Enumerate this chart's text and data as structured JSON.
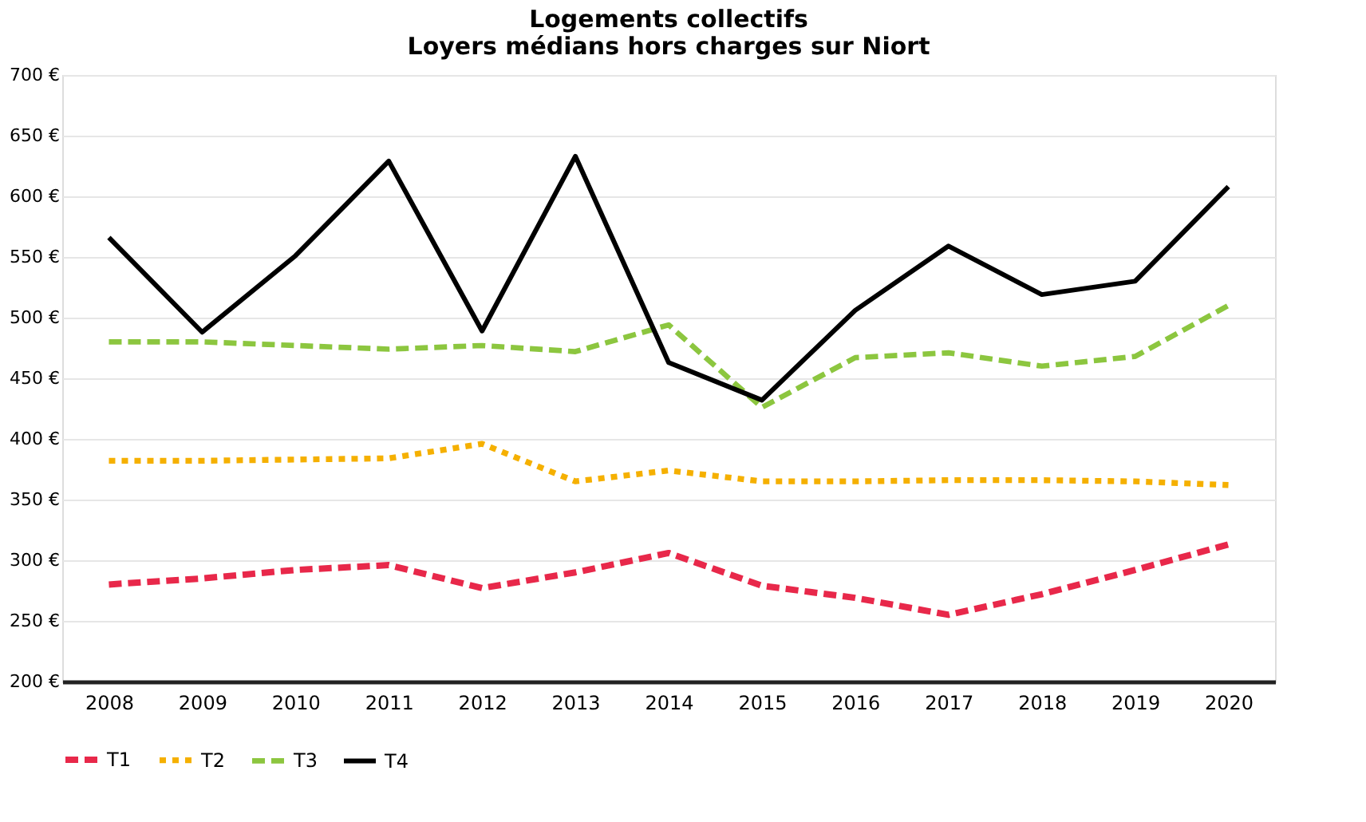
{
  "chart_data": {
    "type": "line",
    "title": "Logements collectifs\nLoyers médians hors charges sur Niort",
    "categories": [
      "2008",
      "2009",
      "2010",
      "2011",
      "2012",
      "2013",
      "2014",
      "2015",
      "2016",
      "2017",
      "2018",
      "2019",
      "2020"
    ],
    "series": [
      {
        "name": "T1",
        "color": "#e8284a",
        "line_style": "dashed",
        "values": [
          280,
          285,
          292,
          296,
          277,
          290,
          306,
          279,
          269,
          255,
          272,
          292,
          313
        ]
      },
      {
        "name": "T2",
        "color": "#f5b000",
        "line_style": "dotted",
        "values": [
          382,
          382,
          383,
          384,
          396,
          365,
          374,
          365,
          365,
          366,
          366,
          365,
          362
        ]
      },
      {
        "name": "T3",
        "color": "#8cc63f",
        "line_style": "dashed",
        "values": [
          480,
          480,
          477,
          474,
          477,
          472,
          494,
          426,
          467,
          471,
          460,
          468,
          510
        ]
      },
      {
        "name": "T4",
        "color": "#000000",
        "line_style": "solid",
        "values": [
          566,
          488,
          551,
          629,
          489,
          633,
          463,
          432,
          506,
          559,
          519,
          530,
          608
        ]
      }
    ],
    "ylim": [
      200,
      700
    ],
    "yticks": [
      {
        "value": 200,
        "label": "200 €"
      },
      {
        "value": 250,
        "label": "250 €"
      },
      {
        "value": 300,
        "label": "300 €"
      },
      {
        "value": 350,
        "label": "350 €"
      },
      {
        "value": 400,
        "label": "400 €"
      },
      {
        "value": 450,
        "label": "450 €"
      },
      {
        "value": 500,
        "label": "500 €"
      },
      {
        "value": 550,
        "label": "550 €"
      },
      {
        "value": 600,
        "label": "600 €"
      },
      {
        "value": 650,
        "label": "650 €"
      },
      {
        "value": 700,
        "label": "700 €"
      }
    ],
    "grid": "y",
    "legend": "bottom"
  }
}
